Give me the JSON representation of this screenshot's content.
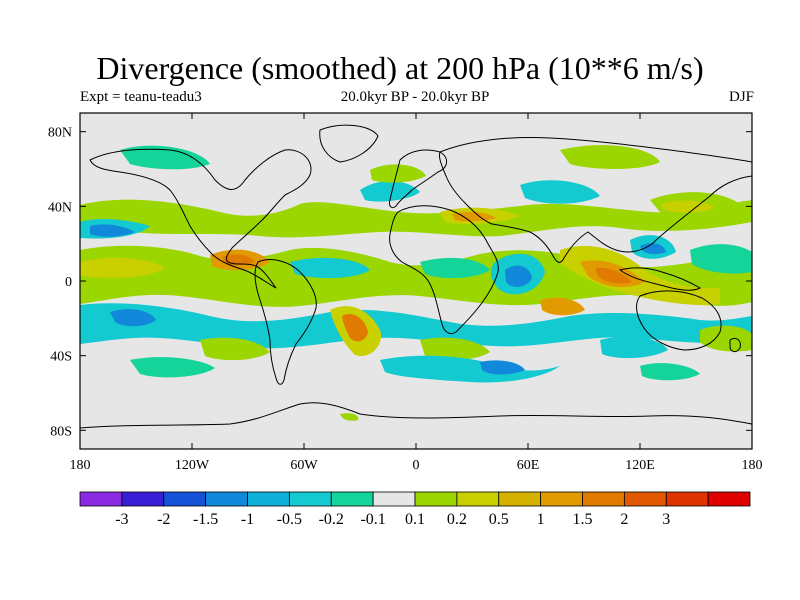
{
  "title": "Divergence (smoothed) at 200 hPa (10**6 m/s)",
  "left_subtitle": "Expt = teanu-teadu3",
  "center_subtitle": "20.0kyr BP - 20.0kyr BP",
  "right_subtitle": "DJF",
  "chart_data": {
    "type": "heatmap",
    "projection": "cylindrical equidistant",
    "x_range": [
      -180,
      180
    ],
    "y_range": [
      -90,
      90
    ],
    "x_ticks": [
      {
        "value": -180,
        "label": "180"
      },
      {
        "value": -120,
        "label": "120W"
      },
      {
        "value": -60,
        "label": "60W"
      },
      {
        "value": 0,
        "label": "0"
      },
      {
        "value": 60,
        "label": "60E"
      },
      {
        "value": 120,
        "label": "120E"
      },
      {
        "value": 180,
        "label": "180"
      }
    ],
    "y_ticks": [
      {
        "value": 80,
        "label": "80N"
      },
      {
        "value": 40,
        "label": "40N"
      },
      {
        "value": 0,
        "label": "0"
      },
      {
        "value": -40,
        "label": "40S"
      },
      {
        "value": -80,
        "label": "80S"
      }
    ],
    "colorbar": {
      "colors": [
        "#8a2be2",
        "#3a1ed6",
        "#1452d8",
        "#1188d9",
        "#0fb0d8",
        "#12cad0",
        "#14d49a",
        "#e6e6e6",
        "#9bd600",
        "#c8d000",
        "#d6b200",
        "#e19a00",
        "#e07a00",
        "#e05800",
        "#e03400",
        "#e00000"
      ],
      "labels": [
        "-3",
        "-2",
        "-1.5",
        "-1",
        "-0.5",
        "-0.2",
        "-0.1",
        "0.1",
        "0.2",
        "0.5",
        "1",
        "1.5",
        "2",
        "3"
      ]
    }
  }
}
